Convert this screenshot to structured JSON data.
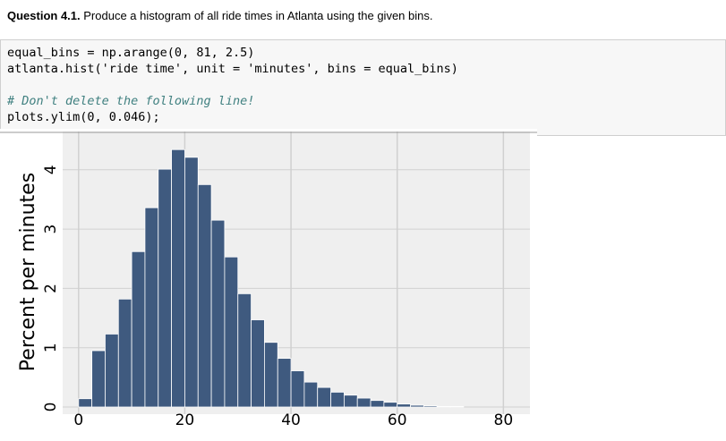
{
  "question": {
    "label": "Question 4.1.",
    "text": "Produce a histogram of all ride times in Atlanta using the given bins."
  },
  "code": {
    "lines": [
      "equal_bins = np.arange(0, 81, 2.5)",
      "atlanta.hist('ride time', unit = 'minutes', bins = equal_bins)",
      "# Don't delete the following line!",
      "plots.ylim(0, 0.046);"
    ]
  },
  "chart_data": {
    "type": "histogram",
    "ylabel": "Percent per minutes",
    "bins": [
      0,
      2.5,
      5,
      7.5,
      10,
      12.5,
      15,
      17.5,
      20,
      22.5,
      25,
      27.5,
      30,
      32.5,
      35,
      37.5,
      40,
      42.5,
      45,
      47.5,
      50,
      52.5,
      55,
      57.5,
      60,
      62.5,
      65,
      67.5,
      70,
      72.5,
      75,
      77.5,
      80
    ],
    "values": [
      0.14,
      0.95,
      1.23,
      1.82,
      2.62,
      3.36,
      4.01,
      4.34,
      4.21,
      3.75,
      3.15,
      2.53,
      1.91,
      1.47,
      1.09,
      0.82,
      0.61,
      0.42,
      0.33,
      0.25,
      0.2,
      0.15,
      0.11,
      0.08,
      0.05,
      0.03,
      0.02,
      0.01,
      0.01,
      0,
      0,
      0
    ],
    "color": "#3f5a7f",
    "xlim": [
      -3,
      85
    ],
    "ylim": [
      0,
      4.6
    ],
    "xticks": [
      0,
      20,
      40,
      60,
      80
    ],
    "yticks": [
      0,
      1,
      2,
      3,
      4
    ],
    "grid": true
  }
}
